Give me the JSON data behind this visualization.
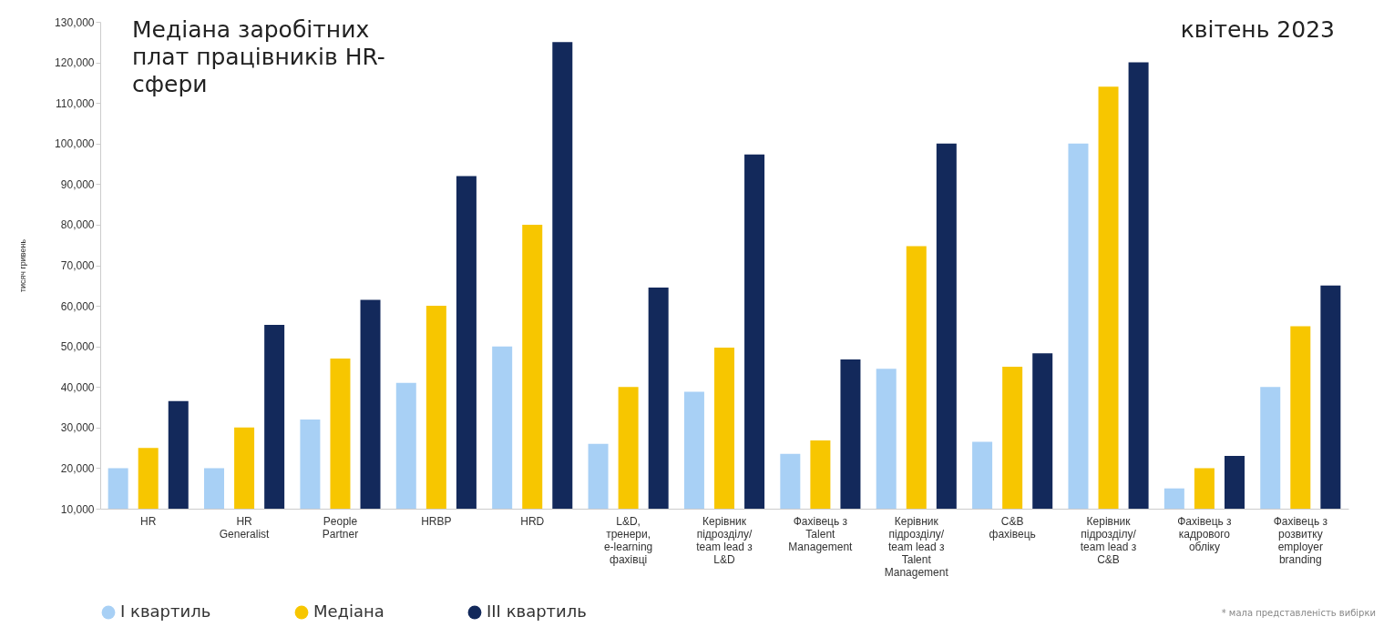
{
  "chart_data": {
    "type": "bar",
    "title": "Медіана заробітних плат працівників HR-сфери",
    "ylabel": "тисяч гривень",
    "annotations": [
      "квітень 2023",
      "* мала представленість вибірки"
    ],
    "categories": [
      "HR",
      "HR Generalist",
      "People Partner",
      "HRBP",
      "HRD",
      "L&D, тренери, e-learning фахівці",
      "Керівник підрозділу/ team lead з L&D",
      "Фахівець з Talent Management",
      "Керівник підрозділу/ team lead з Talent Management",
      "C&B фахівець",
      "Керівник підрозділу/ team lead з C&B",
      "Фахівець з кадрового обліку",
      "Фахівець з розвитку employer branding"
    ],
    "series": [
      {
        "name": "I квартиль",
        "color": "#a8d0f5",
        "values": [
          20000,
          20000,
          32000,
          41000,
          50000,
          26000,
          38800,
          23500,
          44500,
          26500,
          100000,
          15000,
          40000
        ]
      },
      {
        "name": "Медіана",
        "color": "#f7c600",
        "values": [
          25000,
          30000,
          47000,
          60000,
          80000,
          40000,
          49700,
          26800,
          74700,
          45000,
          114000,
          20000,
          55000
        ]
      },
      {
        "name": "III квартиль",
        "color": "#13295b",
        "values": [
          36500,
          55300,
          61500,
          92000,
          125000,
          64500,
          97300,
          46800,
          100000,
          48300,
          120000,
          23000,
          65000
        ]
      }
    ],
    "ylim": [
      10000,
      130000
    ],
    "yticks": [
      {
        "value": 10000,
        "label": "10,000"
      },
      {
        "value": 20000,
        "label": "20,000"
      },
      {
        "value": 30000,
        "label": "30,000"
      },
      {
        "value": 40000,
        "label": "40,000"
      },
      {
        "value": 50000,
        "label": "50,000"
      },
      {
        "value": 60000,
        "label": "60,000"
      },
      {
        "value": 70000,
        "label": "70,000"
      },
      {
        "value": 80000,
        "label": "80,000"
      },
      {
        "value": 90000,
        "label": "90,000"
      },
      {
        "value": 100000,
        "label": "100,000"
      },
      {
        "value": 110000,
        "label": "110,000"
      },
      {
        "value": 120000,
        "label": "120,000"
      },
      {
        "value": 130000,
        "label": "130,000"
      }
    ],
    "grid": false,
    "legend": "bottom left"
  }
}
